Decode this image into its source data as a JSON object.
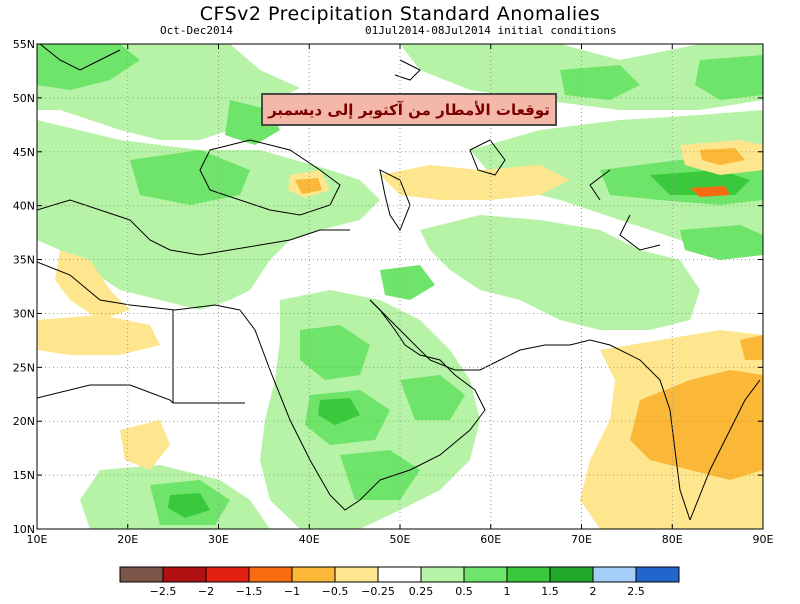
{
  "title": "CFSv2 Precipitation Standard Anomalies",
  "period": "Oct-Dec2014",
  "initial_conditions": "01Jul2014-08Jul2014 initial conditions",
  "callout_text": "توقعات الأمطار من آكتوبر إلى ديسمبر",
  "map": {
    "lon_range": [
      10,
      90
    ],
    "lat_range": [
      10,
      55
    ],
    "x_ticks": [
      "10E",
      "20E",
      "30E",
      "40E",
      "50E",
      "60E",
      "70E",
      "80E",
      "90E"
    ],
    "y_ticks": [
      "55N",
      "50N",
      "45N",
      "40N",
      "35N",
      "30N",
      "25N",
      "20N",
      "15N",
      "10N"
    ]
  },
  "legend": {
    "labels": [
      "−2.5",
      "−2",
      "−1.5",
      "−1",
      "−0.5",
      "−0.25",
      "0.25",
      "0.5",
      "1",
      "1.5",
      "2",
      "2.5"
    ],
    "colors": [
      "#7b5548",
      "#b01010",
      "#e02010",
      "#f86b10",
      "#fbb838",
      "#fde68e",
      "#ffffff",
      "#b6f3a6",
      "#6ee46a",
      "#3ac93c",
      "#22a82a",
      "#a4cef7",
      "#2266cc"
    ]
  }
}
